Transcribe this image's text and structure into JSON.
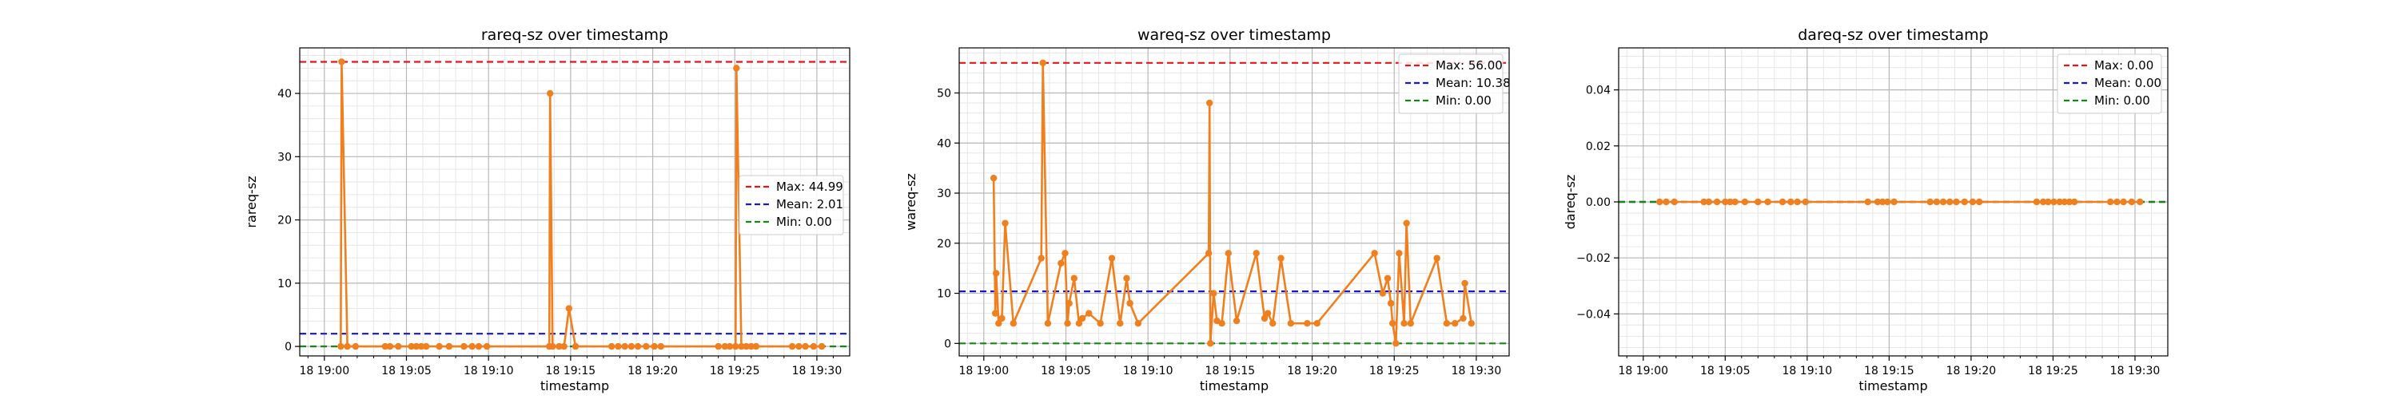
{
  "chart_data": [
    {
      "type": "line",
      "title": "rareq-sz over timestamp",
      "xlabel": "timestamp",
      "ylabel": "rareq-sz",
      "x_range": [
        "18 19:00",
        "18 19:32"
      ],
      "x_ticks": [
        "18 19:00",
        "18 19:05",
        "18 19:10",
        "18 19:15",
        "18 19:20",
        "18 19:25",
        "18 19:30"
      ],
      "x_tick_minutes": [
        0,
        5,
        10,
        15,
        20,
        25,
        30
      ],
      "ylim": [
        -1.5,
        47.2
      ],
      "y_ticks": [
        "0",
        "10",
        "20",
        "30",
        "40"
      ],
      "y_tick_values": [
        0,
        10,
        20,
        30,
        40
      ],
      "minor_grid": true,
      "legend_position": "center-right",
      "series_color": "#f07f1e",
      "x_minutes": [
        1,
        1.05,
        1.4,
        1.9,
        3.7,
        4.0,
        4.5,
        5.3,
        5.6,
        5.9,
        6.2,
        7.0,
        7.6,
        8.5,
        9.0,
        9.4,
        9.9,
        13.7,
        13.75,
        13.9,
        14.3,
        14.6,
        14.9,
        15.3,
        17.5,
        17.9,
        18.3,
        18.7,
        19.1,
        19.6,
        20.1,
        20.5,
        24.0,
        24.4,
        24.7,
        25.05,
        25.1,
        25.4,
        25.7,
        26.0,
        26.3,
        28.5,
        28.9,
        29.3,
        29.8,
        30.3
      ],
      "y_values": [
        0,
        45,
        0,
        0,
        0,
        0,
        0,
        0,
        0,
        0,
        0,
        0,
        0,
        0,
        0,
        0,
        0,
        0,
        40,
        0,
        0,
        0,
        6,
        0,
        0,
        0,
        0,
        0,
        0,
        0,
        0,
        0,
        0,
        0,
        0,
        0,
        44,
        0,
        0,
        0,
        0,
        0,
        0,
        0,
        0,
        0
      ],
      "reference_lines": [
        {
          "label": "Max: 44.99",
          "value": 44.99,
          "color": "#e8141a"
        },
        {
          "label": "Mean: 2.01",
          "value": 2.01,
          "color": "#1616cc"
        },
        {
          "label": "Min: 0.00",
          "value": 0.0,
          "color": "#138a13"
        }
      ]
    },
    {
      "type": "line",
      "title": "wareq-sz over timestamp",
      "xlabel": "timestamp",
      "ylabel": "wareq-sz",
      "x_range": [
        "18 19:00",
        "18 19:32"
      ],
      "x_ticks": [
        "18 19:00",
        "18 19:05",
        "18 19:10",
        "18 19:15",
        "18 19:20",
        "18 19:25",
        "18 19:30"
      ],
      "x_tick_minutes": [
        0,
        5,
        10,
        15,
        20,
        25,
        30
      ],
      "ylim": [
        -2.5,
        59.0
      ],
      "y_ticks": [
        "0",
        "10",
        "20",
        "30",
        "40",
        "50"
      ],
      "y_tick_values": [
        0,
        10,
        20,
        30,
        40,
        50
      ],
      "minor_grid": true,
      "legend_position": "top-right",
      "series_color": "#f07f1e",
      "x_minutes": [
        0.6,
        0.7,
        0.75,
        0.9,
        1.1,
        1.3,
        1.8,
        3.5,
        3.6,
        3.9,
        4.7,
        4.95,
        5.1,
        5.2,
        5.5,
        5.8,
        6.0,
        6.4,
        7.1,
        7.8,
        8.3,
        8.7,
        8.9,
        9.4,
        13.7,
        13.75,
        13.8,
        14.0,
        14.2,
        14.5,
        14.9,
        15.4,
        16.6,
        17.1,
        17.3,
        17.6,
        18.1,
        18.7,
        19.7,
        20.3,
        23.8,
        24.3,
        24.6,
        24.8,
        24.9,
        25.1,
        25.3,
        25.6,
        25.75,
        26.0,
        27.6,
        28.2,
        28.7,
        29.2,
        29.3,
        29.7
      ],
      "y_values": [
        33,
        6,
        14,
        4,
        5,
        24,
        4,
        17,
        56,
        4,
        16,
        18,
        4,
        8,
        13,
        4,
        5,
        6,
        4,
        17,
        4,
        13,
        8,
        4,
        18,
        48,
        0,
        10,
        4.5,
        4,
        18,
        4.5,
        18,
        5,
        6,
        4,
        17,
        4,
        4,
        4,
        18,
        10,
        13,
        8,
        4,
        0,
        18,
        4,
        24,
        4,
        17,
        4,
        4,
        5,
        12,
        4
      ],
      "reference_lines": [
        {
          "label": "Max: 56.00",
          "value": 56.0,
          "color": "#e8141a"
        },
        {
          "label": "Mean: 10.38",
          "value": 10.38,
          "color": "#1616cc"
        },
        {
          "label": "Min: 0.00",
          "value": 0.0,
          "color": "#138a13"
        }
      ]
    },
    {
      "type": "line",
      "title": "dareq-sz over timestamp",
      "xlabel": "timestamp",
      "ylabel": "dareq-sz",
      "x_range": [
        "18 19:00",
        "18 19:32"
      ],
      "x_ticks": [
        "18 19:00",
        "18 19:05",
        "18 19:10",
        "18 19:15",
        "18 19:20",
        "18 19:25",
        "18 19:30"
      ],
      "x_tick_minutes": [
        0,
        5,
        10,
        15,
        20,
        25,
        30
      ],
      "ylim": [
        -0.055,
        0.055
      ],
      "y_ticks": [
        "−0.04",
        "−0.02",
        "0.00",
        "0.02",
        "0.04"
      ],
      "y_tick_values": [
        -0.04,
        -0.02,
        0.0,
        0.02,
        0.04
      ],
      "minor_grid": true,
      "legend_position": "top-right",
      "series_color": "#f07f1e",
      "x_minutes": [
        1.0,
        1.4,
        1.9,
        3.7,
        4.0,
        4.5,
        5.0,
        5.3,
        5.6,
        6.2,
        7.0,
        7.6,
        8.5,
        9.0,
        9.4,
        9.9,
        13.7,
        14.3,
        14.6,
        14.9,
        15.3,
        17.5,
        17.9,
        18.3,
        18.7,
        19.1,
        19.6,
        20.1,
        20.5,
        24.0,
        24.4,
        24.7,
        25.05,
        25.4,
        25.7,
        26.0,
        26.3,
        28.5,
        28.9,
        29.3,
        29.8,
        30.3
      ],
      "y_values": [
        0,
        0,
        0,
        0,
        0,
        0,
        0,
        0,
        0,
        0,
        0,
        0,
        0,
        0,
        0,
        0,
        0,
        0,
        0,
        0,
        0,
        0,
        0,
        0,
        0,
        0,
        0,
        0,
        0,
        0,
        0,
        0,
        0,
        0,
        0,
        0,
        0,
        0,
        0,
        0,
        0,
        0
      ],
      "reference_lines": [
        {
          "label": "Max: 0.00",
          "value": 0.0,
          "color": "#e8141a"
        },
        {
          "label": "Mean: 0.00",
          "value": 0.0,
          "color": "#1616cc"
        },
        {
          "label": "Min: 0.00",
          "value": 0.0,
          "color": "#138a13"
        }
      ]
    }
  ]
}
